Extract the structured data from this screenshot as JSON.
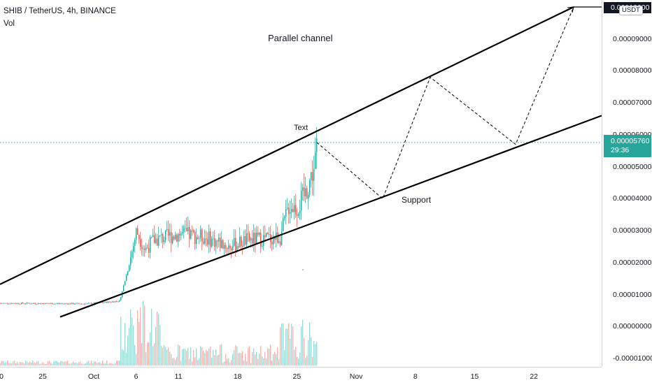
{
  "header": {
    "symbol_line": "SHIB / TetherUS, 4h, BINANCE",
    "volume_label": "Vol"
  },
  "annotations": {
    "title": "Parallel channel",
    "text_label": "Text",
    "support_label": "Support"
  },
  "price_axis": {
    "labels": [
      "0.00009000",
      "0.00008000",
      "0.00007000",
      "0.00006000",
      "0.00005000",
      "0.00004000",
      "0.00003000",
      "0.00002000",
      "0.00001000",
      "0.00000000",
      "-0.00001000"
    ],
    "current_price": "0.00005760",
    "countdown": "29:36",
    "top_tag": "0.00010000",
    "currency": "USDT"
  },
  "time_axis": {
    "labels": [
      "0",
      "25",
      "Oct",
      "6",
      "11",
      "18",
      "25",
      "Nov",
      "8",
      "15",
      "22"
    ]
  },
  "colors": {
    "up": "#26a69a",
    "down": "#ef5350",
    "price_line": "#26a69a",
    "drawing": "#000000",
    "background": "#ffffff"
  },
  "chart_data": {
    "type": "candlestick",
    "symbol": "SHIB / TetherUS",
    "interval": "4h",
    "exchange": "BINANCE",
    "ylim": [
      -1e-05,
      0.0001
    ],
    "current_price": 5.76e-05,
    "price_path": [
      [
        "Sep 19",
        7.3e-06
      ],
      [
        "Sep 25",
        7.2e-06
      ],
      [
        "Sep 30",
        7.1e-06
      ],
      [
        "Oct 2",
        7.5e-06
      ],
      [
        "Oct 4",
        8e-06
      ],
      [
        "Oct 5",
        1.8e-05
      ],
      [
        "Oct 6",
        3e-05
      ],
      [
        "Oct 7",
        2.4e-05
      ],
      [
        "Oct 8",
        2.7e-05
      ],
      [
        "Oct 11",
        2.9e-05
      ],
      [
        "Oct 14",
        2.8e-05
      ],
      [
        "Oct 17",
        2.5e-05
      ],
      [
        "Oct 19",
        2.7e-05
      ],
      [
        "Oct 23",
        2.8e-05
      ],
      [
        "Oct 24",
        3.8e-05
      ],
      [
        "Oct 25",
        3.7e-05
      ],
      [
        "Oct 26",
        4.2e-05
      ],
      [
        "Oct 27",
        5e-05
      ],
      [
        "Oct 27 12:00",
        5.76e-05
      ]
    ],
    "channel": {
      "upper": [
        [
          "Sep 19",
          1.32e-05
        ],
        [
          "Nov 28",
          0.0001
        ]
      ],
      "lower": [
        [
          "Sep 21",
          3e-06
        ],
        [
          "Nov 29",
          6.6e-05
        ]
      ]
    },
    "projection": [
      [
        "Oct 27 12:00",
        5.76e-05
      ],
      [
        "Nov 3",
        4e-05
      ],
      [
        "Nov 10",
        7.8e-05
      ],
      [
        "Nov 19",
        5.7e-05
      ],
      [
        "Nov 28",
        0.0001
      ]
    ],
    "title": "Parallel channel",
    "legend": "none",
    "grid": false
  }
}
